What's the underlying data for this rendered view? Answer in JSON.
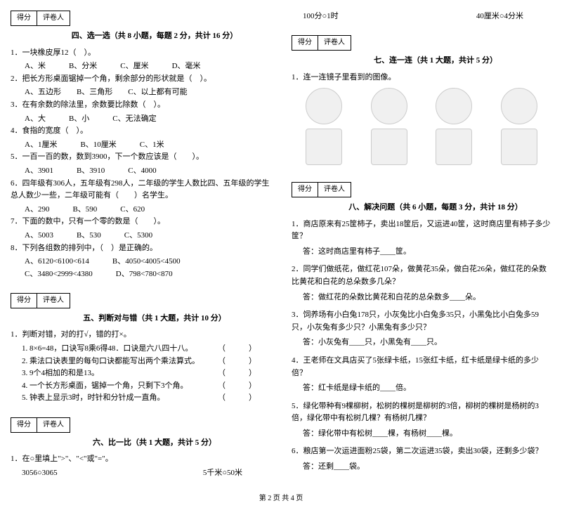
{
  "scorebox": {
    "score": "得分",
    "grader": "评卷人"
  },
  "sec4": {
    "title": "四、选一选（共 8 小题，每题 2 分，共计 16 分）",
    "q1": "1．一块橡皮厚12（　）。",
    "q1o": "A、米　　　B、分米　　　C、厘米　　　D、毫米",
    "q2": "2．把长方形桌面锯掉一个角，剩余部分的形状就是（　）。",
    "q2o": "A、五边形　　B、三角形　　C、以上都有可能",
    "q3": "3．在有余数的除法里，余数要比除数（　）。",
    "q3o": "A、大　　　B、小　　　C、无法确定",
    "q4": "4．食指的宽度（　）。",
    "q4o": "A、1厘米　　　B、10厘米　　　C、1米",
    "q5": "5．一百一百的数，数到3900，下一个数应该是（　　）。",
    "q5o": "A、3901　　　B、3910　　　C、4000",
    "q6": "6．四年级有306人，五年级有298人，二年级的学生人数比四、五年级的学生总人数少一些，二年级可能有（　　）名学生。",
    "q6o": "A、290　　　B、590　　　C、620",
    "q7": "7．下面的数中，只有一个零的数是（　　）。",
    "q7o": "A、5003　　　B、530　　　C、5300",
    "q8": "8．下列各组数的排列中，（　）是正确的。",
    "q8oa": "A、6120<6100<614　　　B、4050<4005<4500",
    "q8ob": "C、3480<2999<4380　　　D、798<780<870"
  },
  "sec5": {
    "title": "五、判断对与错（共 1 大题，共计 10 分）",
    "q1": "1．判断对错，对的打√，错的打×。",
    "i1": "1. 8×6=48，口诀写8乘6得48．口诀是六八四十八。",
    "i2": "2. 乘法口诀表里的每句口诀都能写出两个乘法算式。",
    "i3": "3. 9个4相加的和是13。",
    "i4": "4. 一个长方形桌面，锯掉一个角，只剩下3个角。",
    "i5": "5. 钟表上显示3时，时针和分针成一直角。",
    "p": "（　　　）"
  },
  "sec6": {
    "title": "六、比一比（共 1 大题，共计 5 分）",
    "q1": "1．在○里填上\">\"、\"<\"或\"=\"。",
    "r1a": "3056○3065",
    "r1b": "5千米○50米",
    "r2a": "100分○1时",
    "r2b": "40厘米○4分米"
  },
  "sec7": {
    "title": "七、连一连（共 1 大题，共计 5 分）",
    "q1": "1．连一连镜子里看到的图像。"
  },
  "sec8": {
    "title": "八、解决问题（共 6 小题，每题 3 分，共计 18 分）",
    "q1": "1．商店原来有25筐柿子，卖出18筐后，又运进40筐，这时商店里有柿子多少筐？",
    "a1": "答：这时商店里有柿子____筐。",
    "q2": "2．同学们做纸花，做红花107朵，做黄花35朵，做白花26朵，做红花的朵数比黄花和白花的总朵数多几朵？",
    "a2": "答：做红花的朵数比黄花和白花的总朵数多____朵。",
    "q3": "3．饲养场有小白兔178只，小灰兔比小白兔多35只，小黑兔比小白兔多59只，小灰兔有多少只？小黑兔有多少只？",
    "a3": "答：小灰兔有____只，小黑兔有____只。",
    "q4": "4．王老师在文具店买了5张绿卡纸，15张红卡纸，红卡纸是绿卡纸的多少倍？",
    "a4": "答：红卡纸是绿卡纸的____倍。",
    "q5": "5．绿化带种有9棵柳树，松树的棵树是柳树的3倍，柳树的棵树是杨树的3倍，绿化带中有松树几棵？有杨树几棵？",
    "a5": "答：绿化带中有松树____棵，有杨树____棵。",
    "q6": "6．粮店第一次运进面粉25袋，第二次运进35袋，卖出30袋，还剩多少袋？",
    "a6": "答：还剩____袋。"
  },
  "footer": "第 2 页 共 4 页"
}
